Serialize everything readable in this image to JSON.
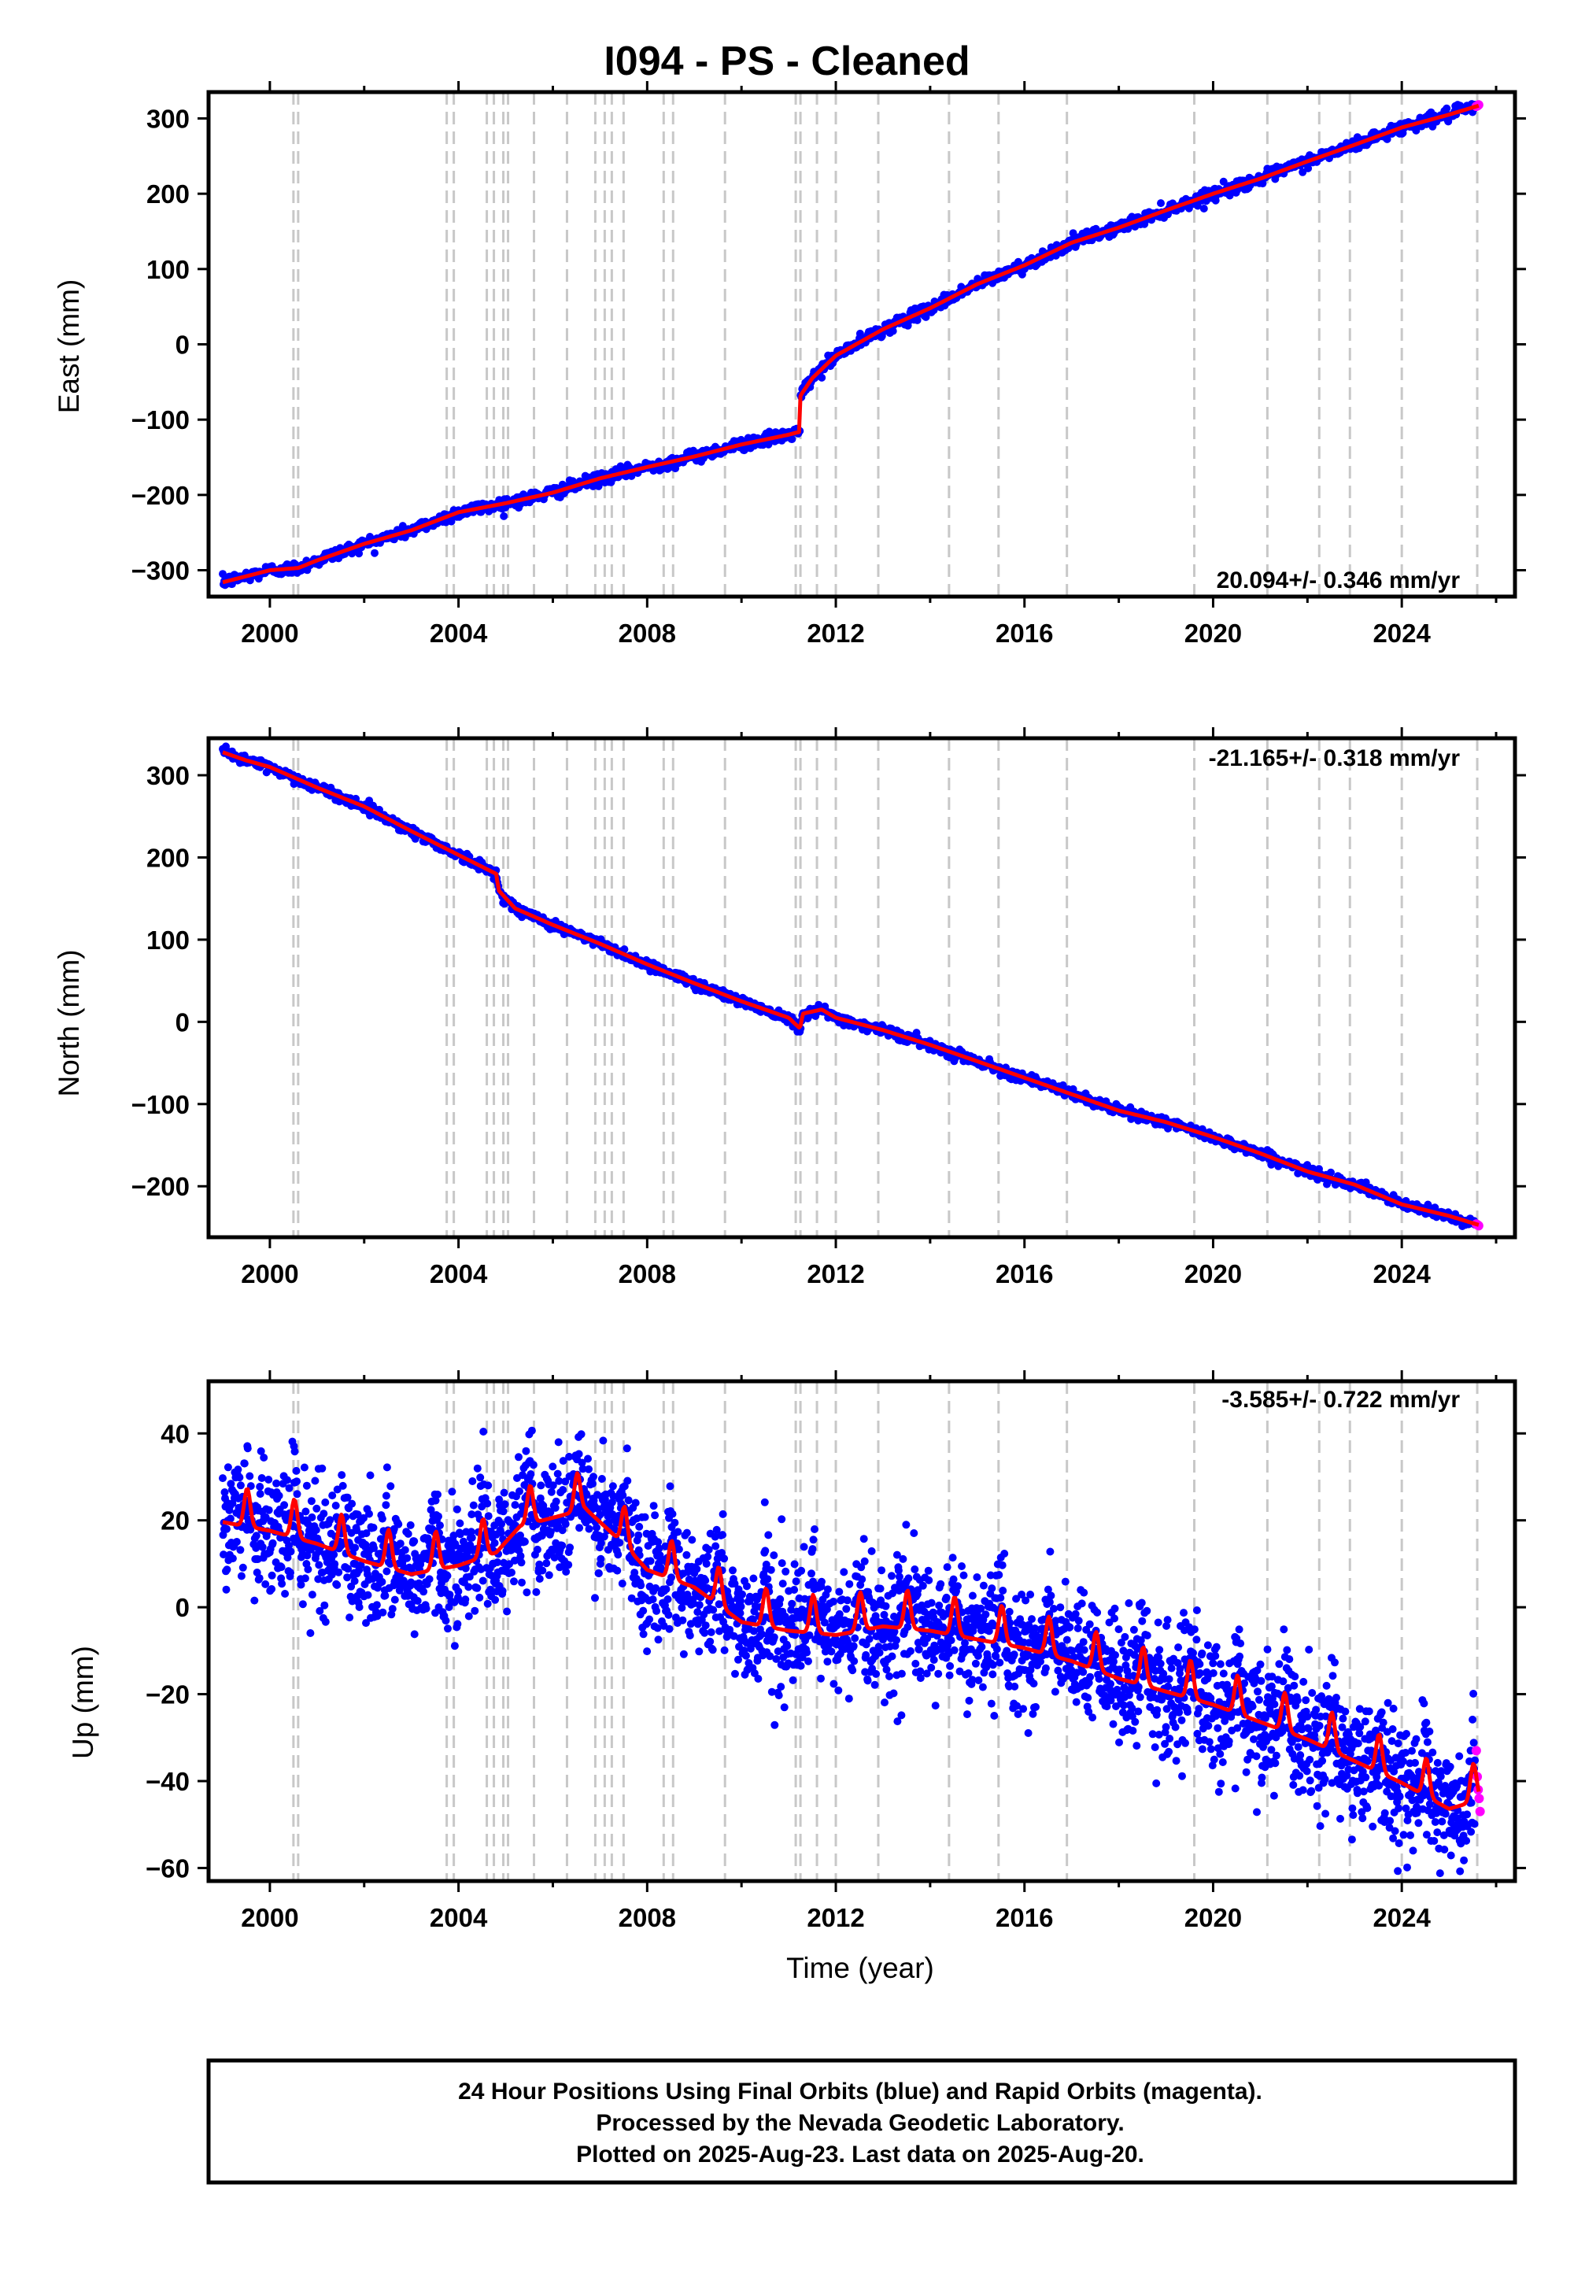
{
  "title": "I094  - PS - Cleaned",
  "footer": {
    "lines": [
      "24 Hour Positions Using Final Orbits (blue) and Rapid Orbits (magenta).",
      "Processed by the Nevada Geodetic Laboratory.",
      "Plotted on 2025-Aug-23. Last data on 2025-Aug-20."
    ]
  },
  "colors": {
    "final_orbits": "#0000ff",
    "rapid_orbits": "#ff00ff",
    "model": "#ff0000",
    "steps": "#c8c8c8"
  },
  "chart_data": [
    {
      "type": "scatter",
      "panel": "east",
      "ylabel": "East (mm)",
      "xlabel": "",
      "xlim": [
        1998.7,
        2026.4
      ],
      "ylim": [
        -335,
        335
      ],
      "xticks": [
        2000,
        2004,
        2008,
        2012,
        2016,
        2020,
        2024
      ],
      "yticks": [
        -300,
        -200,
        -100,
        0,
        100,
        200,
        300
      ],
      "rate_text": "20.094+/- 0.346 mm/yr",
      "rate_position": "bottom-right",
      "grid": false,
      "series": [
        {
          "role": "final_orbits",
          "points": [
            [
              1999.0,
              -316
            ],
            [
              2000.0,
              -300
            ],
            [
              2000.6,
              -297
            ],
            [
              2001.0,
              -287
            ],
            [
              2002.0,
              -265
            ],
            [
              2003.0,
              -247
            ],
            [
              2004.0,
              -223
            ],
            [
              2005.0,
              -211
            ],
            [
              2006.0,
              -197
            ],
            [
              2007.0,
              -178
            ],
            [
              2008.0,
              -163
            ],
            [
              2009.0,
              -149
            ],
            [
              2010.0,
              -133
            ],
            [
              2011.0,
              -120
            ],
            [
              2011.24,
              -116
            ],
            [
              2011.25,
              -68
            ],
            [
              2011.5,
              -45
            ],
            [
              2012.0,
              -15
            ],
            [
              2013.0,
              20
            ],
            [
              2014.0,
              48
            ],
            [
              2015.0,
              80
            ],
            [
              2016.0,
              105
            ],
            [
              2017.0,
              135
            ],
            [
              2018.0,
              155
            ],
            [
              2019.0,
              178
            ],
            [
              2020.0,
              200
            ],
            [
              2021.0,
              220
            ],
            [
              2022.0,
              243
            ],
            [
              2023.0,
              265
            ],
            [
              2024.0,
              288
            ],
            [
              2025.0,
              305
            ],
            [
              2025.55,
              315
            ]
          ],
          "scatter_sd": 4
        },
        {
          "role": "rapid_orbits",
          "points": [
            [
              2025.58,
              316
            ],
            [
              2025.61,
              317
            ],
            [
              2025.63,
              318
            ]
          ]
        },
        {
          "role": "model",
          "points": [
            [
              1999.0,
              -316
            ],
            [
              2000.0,
              -300
            ],
            [
              2000.6,
              -297
            ],
            [
              2001.0,
              -287
            ],
            [
              2002.0,
              -265
            ],
            [
              2003.0,
              -247
            ],
            [
              2004.0,
              -223
            ],
            [
              2005.0,
              -211
            ],
            [
              2006.0,
              -197
            ],
            [
              2007.0,
              -178
            ],
            [
              2008.0,
              -163
            ],
            [
              2009.0,
              -149
            ],
            [
              2010.0,
              -133
            ],
            [
              2011.0,
              -120
            ],
            [
              2011.24,
              -116
            ],
            [
              2011.25,
              -68
            ],
            [
              2011.5,
              -45
            ],
            [
              2012.0,
              -15
            ],
            [
              2013.0,
              20
            ],
            [
              2014.0,
              48
            ],
            [
              2015.0,
              80
            ],
            [
              2016.0,
              105
            ],
            [
              2017.0,
              135
            ],
            [
              2018.0,
              155
            ],
            [
              2019.0,
              178
            ],
            [
              2020.0,
              200
            ],
            [
              2021.0,
              220
            ],
            [
              2022.0,
              243
            ],
            [
              2023.0,
              265
            ],
            [
              2024.0,
              288
            ],
            [
              2025.0,
              305
            ],
            [
              2025.63,
              317
            ]
          ]
        }
      ]
    },
    {
      "type": "scatter",
      "panel": "north",
      "ylabel": "North (mm)",
      "xlabel": "",
      "xlim": [
        1998.7,
        2026.4
      ],
      "ylim": [
        -262,
        345
      ],
      "xticks": [
        2000,
        2004,
        2008,
        2012,
        2016,
        2020,
        2024
      ],
      "yticks": [
        -200,
        -100,
        0,
        100,
        200,
        300
      ],
      "rate_text": "-21.165+/- 0.318 mm/yr",
      "rate_position": "top-right",
      "grid": false,
      "series": [
        {
          "role": "final_orbits",
          "points": [
            [
              1999.0,
              330
            ],
            [
              1999.5,
              318
            ],
            [
              2000.0,
              310
            ],
            [
              2000.6,
              295
            ],
            [
              2001.0,
              285
            ],
            [
              2002.0,
              262
            ],
            [
              2003.0,
              232
            ],
            [
              2004.0,
              203
            ],
            [
              2004.8,
              180
            ],
            [
              2004.85,
              160
            ],
            [
              2005.2,
              138
            ],
            [
              2006.0,
              118
            ],
            [
              2007.0,
              95
            ],
            [
              2008.0,
              70
            ],
            [
              2009.0,
              47
            ],
            [
              2010.0,
              25
            ],
            [
              2011.0,
              5
            ],
            [
              2011.24,
              -8
            ],
            [
              2011.3,
              10
            ],
            [
              2011.7,
              15
            ],
            [
              2012.0,
              5
            ],
            [
              2013.0,
              -10
            ],
            [
              2014.0,
              -28
            ],
            [
              2015.0,
              -48
            ],
            [
              2016.0,
              -68
            ],
            [
              2017.0,
              -88
            ],
            [
              2018.0,
              -108
            ],
            [
              2019.0,
              -122
            ],
            [
              2020.0,
              -140
            ],
            [
              2021.0,
              -160
            ],
            [
              2022.0,
              -182
            ],
            [
              2023.0,
              -198
            ],
            [
              2024.0,
              -222
            ],
            [
              2025.0,
              -236
            ],
            [
              2025.55,
              -245
            ]
          ],
          "scatter_sd": 3
        },
        {
          "role": "rapid_orbits",
          "points": [
            [
              2025.58,
              -246
            ],
            [
              2025.61,
              -247
            ],
            [
              2025.63,
              -248
            ]
          ]
        },
        {
          "role": "model",
          "points": [
            [
              1999.0,
              328
            ],
            [
              1999.5,
              318
            ],
            [
              2000.0,
              310
            ],
            [
              2000.6,
              295
            ],
            [
              2001.0,
              285
            ],
            [
              2002.0,
              262
            ],
            [
              2003.0,
              232
            ],
            [
              2004.0,
              203
            ],
            [
              2004.8,
              180
            ],
            [
              2004.85,
              160
            ],
            [
              2005.2,
              138
            ],
            [
              2006.0,
              118
            ],
            [
              2007.0,
              95
            ],
            [
              2008.0,
              70
            ],
            [
              2009.0,
              47
            ],
            [
              2010.0,
              25
            ],
            [
              2011.0,
              5
            ],
            [
              2011.24,
              -8
            ],
            [
              2011.3,
              10
            ],
            [
              2011.7,
              15
            ],
            [
              2012.0,
              5
            ],
            [
              2013.0,
              -10
            ],
            [
              2014.0,
              -28
            ],
            [
              2015.0,
              -48
            ],
            [
              2016.0,
              -68
            ],
            [
              2017.0,
              -88
            ],
            [
              2018.0,
              -108
            ],
            [
              2019.0,
              -122
            ],
            [
              2020.0,
              -140
            ],
            [
              2021.0,
              -160
            ],
            [
              2022.0,
              -182
            ],
            [
              2023.0,
              -198
            ],
            [
              2024.0,
              -222
            ],
            [
              2025.0,
              -236
            ],
            [
              2025.63,
              -247
            ]
          ]
        }
      ]
    },
    {
      "type": "scatter",
      "panel": "up",
      "ylabel": "Up (mm)",
      "xlabel": "Time (year)",
      "xlim": [
        1998.7,
        2026.4
      ],
      "ylim": [
        -63,
        52
      ],
      "xticks": [
        2000,
        2004,
        2008,
        2012,
        2016,
        2020,
        2024
      ],
      "yticks": [
        -60,
        -40,
        -20,
        0,
        20,
        40
      ],
      "rate_text": "-3.585+/- 0.722 mm/yr",
      "rate_position": "top-right",
      "grid": false,
      "series": [
        {
          "role": "final_orbits",
          "points": [
            [
              1999.0,
              22
            ],
            [
              2000.0,
              20
            ],
            [
              2001.0,
              17
            ],
            [
              2002.0,
              13
            ],
            [
              2003.0,
              10
            ],
            [
              2004.0,
              12
            ],
            [
              2004.8,
              15
            ],
            [
              2005.3,
              21
            ],
            [
              2006.0,
              23
            ],
            [
              2006.7,
              25
            ],
            [
              2007.5,
              17
            ],
            [
              2008.0,
              11
            ],
            [
              2009.0,
              7
            ],
            [
              2010.0,
              -1
            ],
            [
              2011.0,
              -3
            ],
            [
              2012.0,
              -4
            ],
            [
              2013.0,
              -2
            ],
            [
              2014.0,
              -3
            ],
            [
              2015.0,
              -5
            ],
            [
              2016.0,
              -7
            ],
            [
              2017.0,
              -10
            ],
            [
              2018.0,
              -14
            ],
            [
              2019.0,
              -17
            ],
            [
              2020.0,
              -20
            ],
            [
              2021.0,
              -24
            ],
            [
              2022.0,
              -28
            ],
            [
              2023.0,
              -33
            ],
            [
              2024.0,
              -38
            ],
            [
              2025.0,
              -44
            ],
            [
              2025.55,
              -46
            ]
          ],
          "scatter_sd": 7,
          "annual_amplitude": 4
        },
        {
          "role": "rapid_orbits",
          "points": [
            [
              2025.58,
              -33
            ],
            [
              2025.6,
              -39
            ],
            [
              2025.62,
              -42
            ],
            [
              2025.64,
              -44
            ],
            [
              2025.66,
              -47
            ]
          ]
        },
        {
          "role": "model",
          "points": [
            [
              1999.0,
              22
            ],
            [
              2000.0,
              20
            ],
            [
              2001.0,
              17
            ],
            [
              2002.0,
              13
            ],
            [
              2003.0,
              10
            ],
            [
              2004.0,
              12
            ],
            [
              2004.8,
              15
            ],
            [
              2005.3,
              21
            ],
            [
              2006.0,
              23
            ],
            [
              2006.7,
              25
            ],
            [
              2007.5,
              17
            ],
            [
              2008.0,
              11
            ],
            [
              2009.0,
              7
            ],
            [
              2010.0,
              -1
            ],
            [
              2011.0,
              -3
            ],
            [
              2012.0,
              -4
            ],
            [
              2013.0,
              -2
            ],
            [
              2014.0,
              -3
            ],
            [
              2015.0,
              -5
            ],
            [
              2016.0,
              -7
            ],
            [
              2017.0,
              -10
            ],
            [
              2018.0,
              -14
            ],
            [
              2019.0,
              -17
            ],
            [
              2020.0,
              -20
            ],
            [
              2021.0,
              -24
            ],
            [
              2022.0,
              -28
            ],
            [
              2023.0,
              -33
            ],
            [
              2024.0,
              -38
            ],
            [
              2025.0,
              -44
            ],
            [
              2025.63,
              -42
            ]
          ],
          "annual_amplitude": 4
        }
      ]
    }
  ],
  "step_epochs": [
    2000.5,
    2000.6,
    2003.75,
    2003.9,
    2004.6,
    2004.75,
    2004.95,
    2005.05,
    2005.6,
    2006.3,
    2006.9,
    2007.1,
    2007.25,
    2007.5,
    2008.35,
    2008.55,
    2009.65,
    2011.15,
    2011.25,
    2011.6,
    2012.0,
    2012.9,
    2014.4,
    2015.45,
    2016.9,
    2019.6,
    2021.15,
    2022.25,
    2022.9,
    2024.0,
    2025.6
  ]
}
